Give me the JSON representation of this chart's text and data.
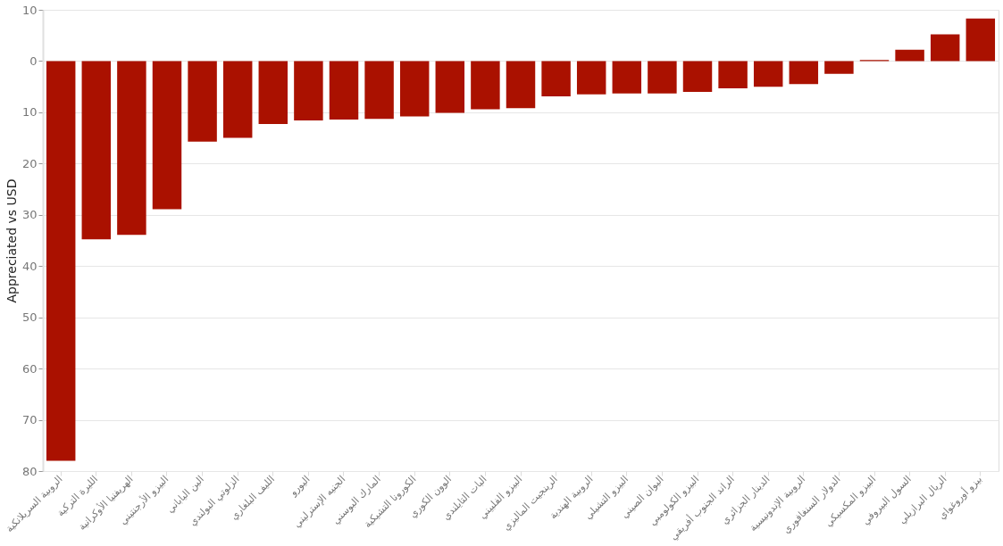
{
  "chart_data": {
    "type": "bar",
    "ylabel": "Appreciated vs USD",
    "categories": [
      "الروبية السريلانكية",
      "الليرة التركية",
      "الهريفنيا الأوكرانية",
      "البيزو الأرجنتيني",
      "الين الياباني",
      "الزلوتي البولندي",
      "الليف البلغاري",
      "اليورو",
      "الجنيه الإسترليني",
      "المارك البوسني",
      "الكورونا التشيكية",
      "الوون الكوري",
      "البات التايلندي",
      "البيزو الفلبيني",
      "الرينجيت الماليزي",
      "الروبية الهندية",
      "البيزو التشيلي",
      "اليوان الصيني",
      "البيزو الكولومبي",
      "الراند الجنوب أفريقي",
      "الدينار الجزائري",
      "الروبية الإندونيسية",
      "الدولار السنغافوري",
      "البيزو المكسيكي",
      "السول البيروفي",
      "الريال البرازيلي",
      "بيزو أوروغواي"
    ],
    "values": [
      -78,
      -34.8,
      -33.9,
      -28.9,
      -15.7,
      -15.0,
      -12.3,
      -11.6,
      -11.4,
      -11.3,
      -10.8,
      -10.1,
      -9.4,
      -9.2,
      -6.9,
      -6.5,
      -6.3,
      -6.3,
      -6.0,
      -5.3,
      -5.0,
      -4.5,
      -2.5,
      0.2,
      2.2,
      5.2,
      8.3
    ],
    "color": "#aa1100",
    "ylim": [
      -80,
      10
    ],
    "yticks": [
      {
        "value": -80,
        "label": "80"
      },
      {
        "value": -70,
        "label": "70"
      },
      {
        "value": -60,
        "label": "60"
      },
      {
        "value": -50,
        "label": "50"
      },
      {
        "value": -40,
        "label": "40"
      },
      {
        "value": -30,
        "label": "30"
      },
      {
        "value": -20,
        "label": "20"
      },
      {
        "value": -10,
        "label": "10"
      },
      0,
      10
    ],
    "grid": "y"
  }
}
